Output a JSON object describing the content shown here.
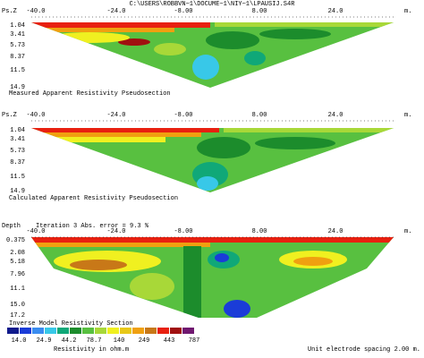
{
  "header": {
    "path": "C:\\USERS\\ROBBVN~1\\DOCUME~1\\NIY~1\\LPAUSIJ.S4R"
  },
  "panels": [
    {
      "y_label": "Ps.Z",
      "x_ticks": [
        "-40.0",
        "-24.0",
        "-8.00",
        "8.00",
        "24.0"
      ],
      "x_unit": "m.",
      "depths": [
        "1.04",
        "3.41",
        "5.73",
        "8.37",
        "11.5",
        "14.9"
      ],
      "caption": "Measured Apparent Resistivity Pseudosection"
    },
    {
      "y_label": "Ps.Z",
      "x_ticks": [
        "-40.0",
        "-24.0",
        "-8.00",
        "8.00",
        "24.0"
      ],
      "x_unit": "m.",
      "depths": [
        "1.04",
        "3.41",
        "5.73",
        "8.37",
        "11.5",
        "14.9"
      ],
      "caption": "Calculated Apparent Resistivity Pseudosection"
    },
    {
      "y_label": "Depth",
      "iteration": "Iteration 3 Abs. error = 9.3 %",
      "x_ticks": [
        "-40.0",
        "-24.0",
        "-8.00",
        "8.00",
        "24.0"
      ],
      "x_unit": "m.",
      "depths": [
        "0.375",
        "2.08",
        "5.18",
        "7.96",
        "11.1",
        "15.0",
        "17.2"
      ],
      "caption": "Inverse Model Resistivity Section"
    }
  ],
  "legend": {
    "values": [
      "14.0",
      "24.9",
      "44.2",
      "78.7",
      "140",
      "249",
      "443",
      "787"
    ],
    "colors": [
      "#101a8c",
      "#1a3cd8",
      "#3a8cf0",
      "#38c8e8",
      "#10a878",
      "#1c8c2c",
      "#58c040",
      "#a8d838",
      "#f0f020",
      "#e8c818",
      "#f0a010",
      "#c87818",
      "#e82010",
      "#a01010",
      "#701870"
    ],
    "unit": "Resistivity in ohm.m"
  },
  "footer": "Unit electrode spacing 2.00 m."
}
